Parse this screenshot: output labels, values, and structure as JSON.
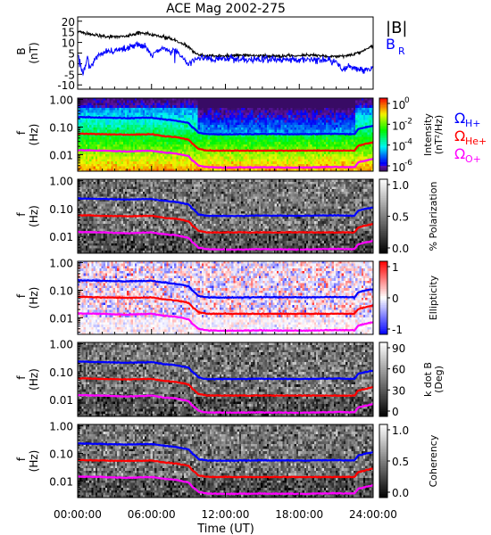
{
  "chart_data": {
    "type": "spectrogram",
    "title": "ACE Mag 2002-275",
    "xlabel": "Time (UT)",
    "x_ticks": [
      "00:00:00",
      "06:00:00",
      "12:00:00",
      "18:00:00",
      "24:00:00"
    ],
    "x_range_hours": [
      0,
      24
    ],
    "panels": [
      {
        "kind": "line",
        "ylabel": "B",
        "yunit": "(nT)",
        "ylim": [
          -12,
          22
        ],
        "yticks": [
          "20",
          "15",
          "10",
          "5",
          "0",
          "-5",
          "-10"
        ],
        "legend": [
          {
            "label": "|B|",
            "color": "#000000"
          },
          {
            "label": "B",
            "sub": "R",
            "color": "#0000ff"
          }
        ],
        "series": [
          {
            "name": "|B|",
            "color": "#000000",
            "t": [
              0,
              1,
              2,
              3,
              4,
              5,
              6,
              7,
              8,
              9,
              9.5,
              10,
              11,
              12,
              13,
              14,
              15,
              16,
              17,
              18,
              19,
              20,
              21,
              22,
              23,
              24
            ],
            "v": [
              15,
              14,
              13,
              12.5,
              13,
              14.5,
              14,
              12.5,
              11,
              8,
              5,
              4,
              3.5,
              3.5,
              3.8,
              4,
              3.5,
              3.5,
              3.5,
              3.8,
              4,
              3.5,
              3.5,
              4,
              5.5,
              8.5
            ]
          },
          {
            "name": "B_R",
            "color": "#0000ff",
            "t": [
              0,
              0.4,
              0.8,
              1,
              1.5,
              2,
              3,
              4,
              5,
              5.5,
              6,
              7,
              7.5,
              8,
              8.5,
              9,
              9.5,
              10,
              11,
              12,
              13,
              14,
              15,
              16,
              17,
              18,
              19,
              20,
              21,
              21.5,
              22,
              23,
              24
            ],
            "v": [
              5,
              -5,
              3,
              -3,
              3,
              5,
              6.5,
              7,
              9,
              8,
              4,
              8,
              5.5,
              6.5,
              3,
              0,
              2,
              3,
              2,
              3,
              2,
              2,
              2,
              2,
              2,
              2,
              1.5,
              2,
              1,
              -3,
              -1,
              -3,
              -2
            ]
          }
        ]
      },
      {
        "kind": "spectrogram",
        "ylabel": "f",
        "yunit": "(Hz)",
        "ylim_log10": [
          -2.6,
          0.05
        ],
        "yticks": [
          "1.00",
          "0.10",
          "0.01"
        ],
        "colorbar": {
          "label": "Intensity",
          "unit": "(nT²/Hz)",
          "palette": "rainbow",
          "ticks": [
            {
              "base": "10",
              "exp": "0"
            },
            {
              "base": "10",
              "exp": "-2"
            },
            {
              "base": "10",
              "exp": "-4"
            },
            {
              "base": "10",
              "exp": "-6"
            }
          ]
        },
        "annotations": [
          {
            "symbol": "Ω",
            "sub": "H+",
            "color": "#0000ff"
          },
          {
            "symbol": "Ω",
            "sub": "He+",
            "color": "#ff0000"
          },
          {
            "symbol": "Ω",
            "sub": "O+",
            "color": "#ff00ff"
          }
        ]
      },
      {
        "kind": "spectrogram",
        "ylabel": "f",
        "yunit": "(Hz)",
        "ylim_log10": [
          -2.6,
          0.05
        ],
        "yticks": [
          "1.00",
          "0.10",
          "0.01"
        ],
        "colorbar": {
          "label": "% Polarization",
          "palette": "gray",
          "ticks": [
            "1.0",
            "0.5",
            "0.0"
          ]
        }
      },
      {
        "kind": "spectrogram",
        "ylabel": "f",
        "yunit": "(Hz)",
        "ylim_log10": [
          -2.6,
          0.05
        ],
        "yticks": [
          "1.00",
          "0.10",
          "0.01"
        ],
        "colorbar": {
          "label": "Ellipticity",
          "palette": "bwr",
          "ticks": [
            "1",
            "0",
            "-1"
          ]
        }
      },
      {
        "kind": "spectrogram",
        "ylabel": "f",
        "yunit": "(Hz)",
        "ylim_log10": [
          -2.6,
          0.05
        ],
        "yticks": [
          "1.00",
          "0.10",
          "0.01"
        ],
        "colorbar": {
          "label": "k dot B",
          "unit": "(Deg)",
          "palette": "gray",
          "ticks": [
            "90",
            "60",
            "30",
            "0"
          ]
        }
      },
      {
        "kind": "spectrogram",
        "ylabel": "f",
        "yunit": "(Hz)",
        "ylim_log10": [
          -2.6,
          0.05
        ],
        "yticks": [
          "1.00",
          "0.10",
          "0.01"
        ],
        "colorbar": {
          "label": "Coherency",
          "palette": "gray",
          "ticks": [
            "1.0",
            "0.5",
            "0.0"
          ]
        }
      }
    ],
    "gyrofrequency_lines_hz": {
      "t": [
        0,
        2,
        4,
        6,
        7,
        8,
        9,
        9.3,
        9.8,
        10.5,
        12,
        15,
        18,
        21,
        22.5,
        22.8,
        23.5,
        24
      ],
      "H+": [
        0.23,
        0.22,
        0.21,
        0.22,
        0.19,
        0.17,
        0.14,
        0.1,
        0.062,
        0.055,
        0.054,
        0.056,
        0.055,
        0.057,
        0.055,
        0.085,
        0.1,
        0.11
      ],
      "He+": [
        0.058,
        0.055,
        0.053,
        0.055,
        0.047,
        0.043,
        0.035,
        0.025,
        0.016,
        0.014,
        0.014,
        0.014,
        0.014,
        0.014,
        0.014,
        0.021,
        0.025,
        0.028
      ],
      "O+": [
        0.0145,
        0.014,
        0.013,
        0.014,
        0.012,
        0.011,
        0.0088,
        0.0062,
        0.004,
        0.0035,
        0.0034,
        0.0035,
        0.0034,
        0.0036,
        0.0035,
        0.0053,
        0.0062,
        0.007
      ],
      "colors": {
        "H+": "#0000ff",
        "He+": "#ff0000",
        "O+": "#ff00ff"
      }
    }
  }
}
